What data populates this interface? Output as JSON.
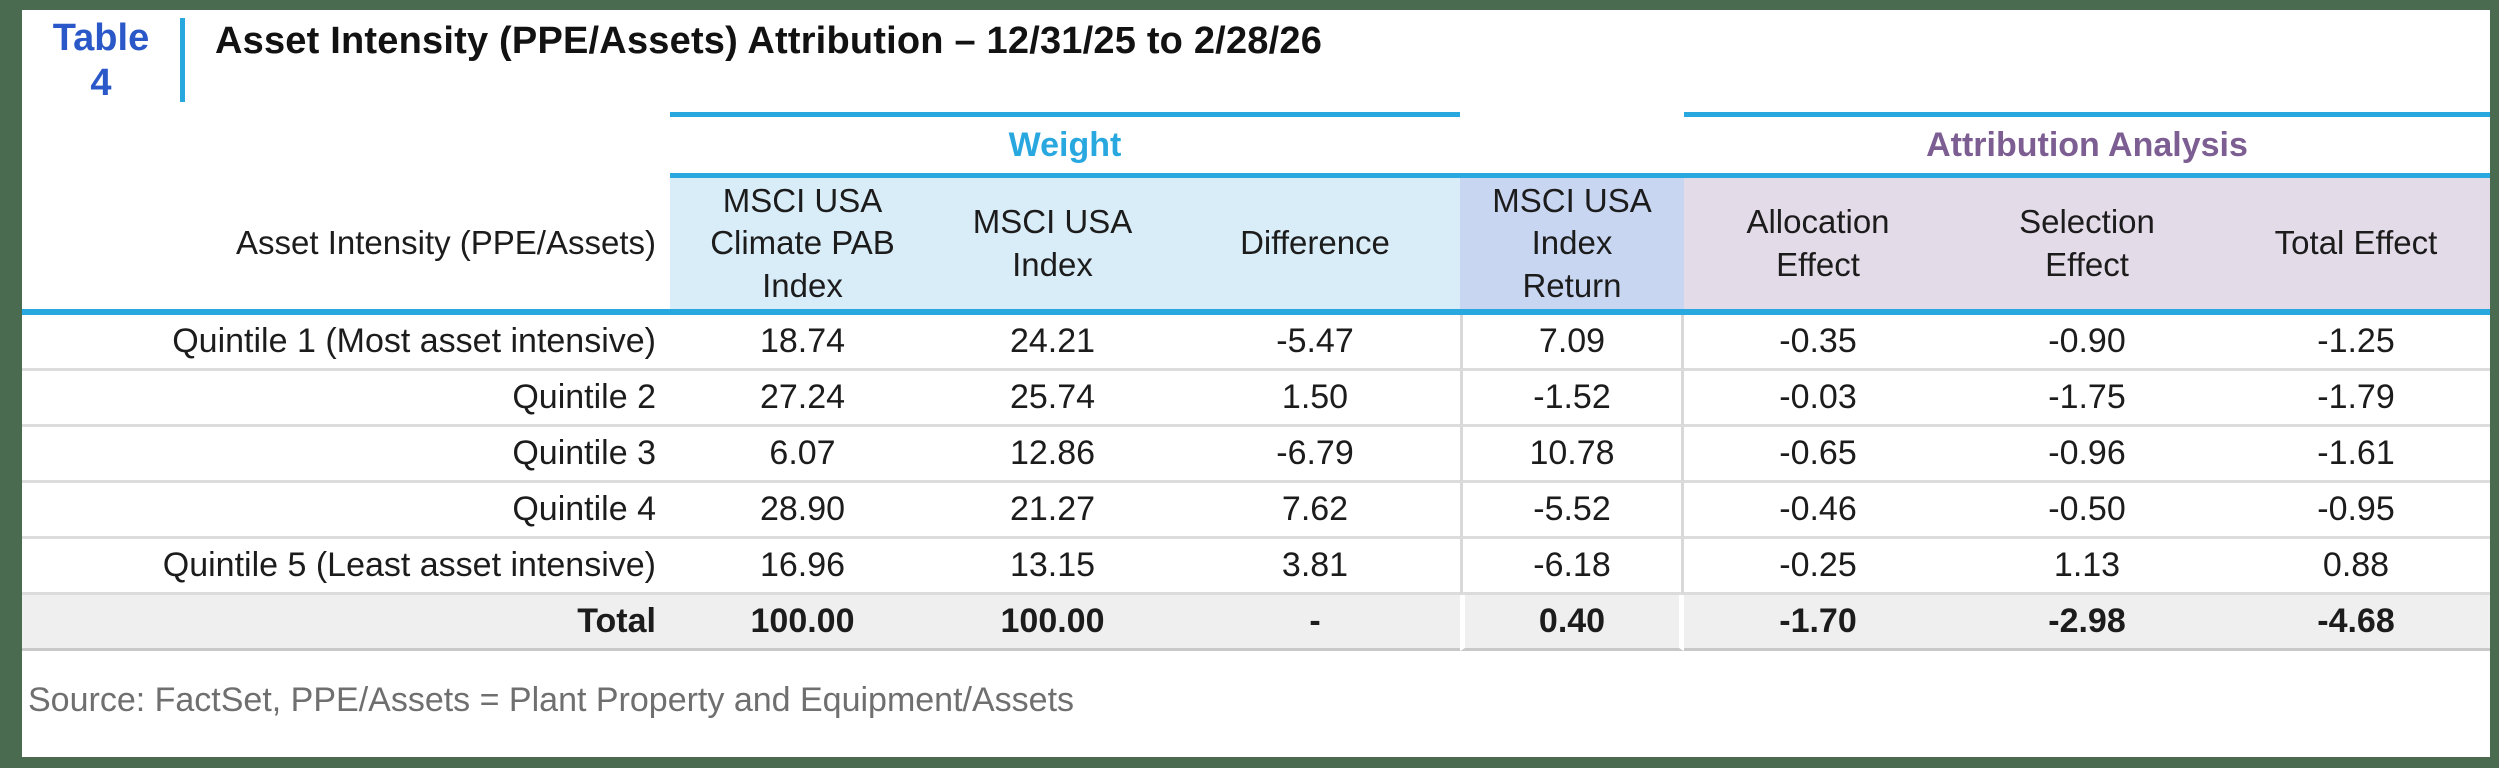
{
  "header": {
    "table_label": "Table",
    "table_number": "4",
    "title": "Asset Intensity (PPE/Assets) Attribution – 12/31/25 to 2/28/26"
  },
  "groups": {
    "weight": {
      "label": "Weight"
    },
    "attribution": {
      "label": "Attribution Analysis"
    }
  },
  "columns": {
    "row_header": "Asset Intensity (PPE/Assets)",
    "weight": [
      "MSCI USA Climate PAB Index",
      "MSCI USA Index",
      "Difference"
    ],
    "return_col": "MSCI USA Index Return",
    "attribution": [
      "Allocation Effect",
      "Selection Effect",
      "Total Effect"
    ]
  },
  "rows": [
    {
      "label": "Quintile 1 (Most asset intensive)",
      "values": [
        "18.74",
        "24.21",
        "-5.47",
        "7.09",
        "-0.35",
        "-0.90",
        "-1.25"
      ]
    },
    {
      "label": "Quintile 2",
      "values": [
        "27.24",
        "25.74",
        "1.50",
        "-1.52",
        "-0.03",
        "-1.75",
        "-1.79"
      ]
    },
    {
      "label": "Quintile 3",
      "values": [
        "6.07",
        "12.86",
        "-6.79",
        "10.78",
        "-0.65",
        "-0.96",
        "-1.61"
      ]
    },
    {
      "label": "Quintile 4",
      "values": [
        "28.90",
        "21.27",
        "7.62",
        "-5.52",
        "-0.46",
        "-0.50",
        "-0.95"
      ]
    },
    {
      "label": "Quintile 5 (Least asset intensive)",
      "values": [
        "16.96",
        "13.15",
        "3.81",
        "-6.18",
        "-0.25",
        "1.13",
        "0.88"
      ]
    }
  ],
  "total": {
    "label": "Total",
    "values": [
      "100.00",
      "100.00",
      "-",
      "0.40",
      "-1.70",
      "-2.98",
      "-4.68"
    ]
  },
  "footer": {
    "source": "Source: FactSet, PPE/Assets = Plant Property and Equipment/Assets"
  },
  "colors": {
    "accent_blue": "#29A8E0",
    "frame_green": "#4A6B4F",
    "weight_header_bg": "#D9EDF8",
    "index_return_bg": "#C8D6F1",
    "attribution_bg": "#E4DBE9",
    "table_label_blue": "#2A58C8",
    "attribution_purple": "#7D5E93",
    "total_row_bg": "#EFEFEF"
  }
}
